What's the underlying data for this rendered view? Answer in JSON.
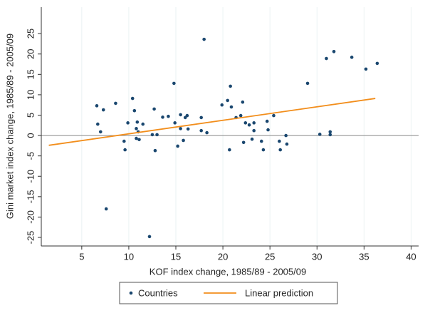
{
  "chart_data": {
    "type": "scatter",
    "xlabel": "KOF index change, 1985/89 - 2005/09",
    "ylabel": "Gini market index change, 1985/89 - 2005/09",
    "xlim": [
      0.7,
      40.8
    ],
    "ylim": [
      -27.1,
      31.5
    ],
    "xticks": [
      5,
      10,
      15,
      20,
      25,
      30,
      35,
      40
    ],
    "yticks": [
      -25,
      -20,
      -15,
      -10,
      -5,
      0,
      5,
      10,
      15,
      20,
      25
    ],
    "grid": true,
    "legend": "bottom",
    "series": [
      {
        "name": "Countries",
        "color": "#1a476f",
        "type": "scatter",
        "x": [
          6.6,
          7.3,
          6.7,
          7.0,
          8.6,
          7.6,
          9.5,
          9.6,
          9.9,
          10.4,
          10.6,
          10.8,
          10.8,
          10.9,
          11.0,
          11.1,
          11.5,
          12.2,
          12.5,
          12.7,
          12.8,
          13.0,
          13.6,
          14.2,
          14.8,
          14.9,
          15.2,
          15.5,
          15.5,
          15.8,
          16.0,
          16.2,
          16.3,
          17.7,
          17.7,
          18.0,
          18.3,
          19.9,
          20.5,
          20.8,
          20.7,
          20.9,
          21.4,
          21.9,
          22.1,
          22.2,
          22.4,
          22.8,
          23.1,
          23.3,
          23.3,
          24.1,
          24.3,
          24.7,
          24.8,
          25.4,
          26.0,
          26.1,
          26.7,
          26.8,
          29.0,
          30.3,
          31.0,
          31.4,
          31.4,
          31.8,
          33.7,
          35.2,
          36.4
        ],
        "values": [
          7.3,
          6.3,
          2.8,
          0.9,
          7.9,
          -18,
          -1.4,
          -3.5,
          3.1,
          9.1,
          6.1,
          1.7,
          -0.7,
          3.3,
          0.9,
          -1.0,
          2.8,
          -24.8,
          0.2,
          6.5,
          -3.7,
          0.2,
          4.5,
          4.7,
          12.8,
          3.1,
          -2.6,
          5.1,
          1.7,
          -1.2,
          4.4,
          4.9,
          1.6,
          4.4,
          1.2,
          23.6,
          0.7,
          7.5,
          8.6,
          12.1,
          -3.5,
          7.0,
          4.4,
          4.9,
          8.2,
          -1.7,
          3.1,
          2.6,
          -0.9,
          3.1,
          1.2,
          -1.4,
          -3.5,
          3.5,
          1.4,
          4.9,
          -1.4,
          -3.5,
          0.0,
          -2.1,
          12.8,
          0.3,
          18.9,
          0.9,
          0.2,
          20.6,
          19.2,
          16.3,
          17.7
        ]
      },
      {
        "name": "Linear prediction",
        "color": "#f28e1c",
        "type": "line",
        "x": [
          1.5,
          36.2
        ],
        "values": [
          -2.4,
          9.1
        ]
      }
    ]
  }
}
